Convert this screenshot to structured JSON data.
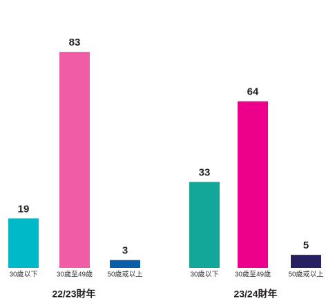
{
  "chart_data": [
    {
      "type": "bar",
      "title": "22/23財年",
      "categories": [
        "30歲以下",
        "30歲至49歲",
        "50歲或以上"
      ],
      "values": [
        19,
        83,
        3
      ],
      "colors": [
        "#00b9c8",
        "#f05ca5",
        "#0a5ea8"
      ]
    },
    {
      "type": "bar",
      "title": "23/24財年",
      "categories": [
        "30歲以下",
        "30歲至49歲",
        "50歲或以上"
      ],
      "values": [
        33,
        64,
        5
      ],
      "colors": [
        "#13a79a",
        "#ec008c",
        "#262262"
      ]
    }
  ]
}
